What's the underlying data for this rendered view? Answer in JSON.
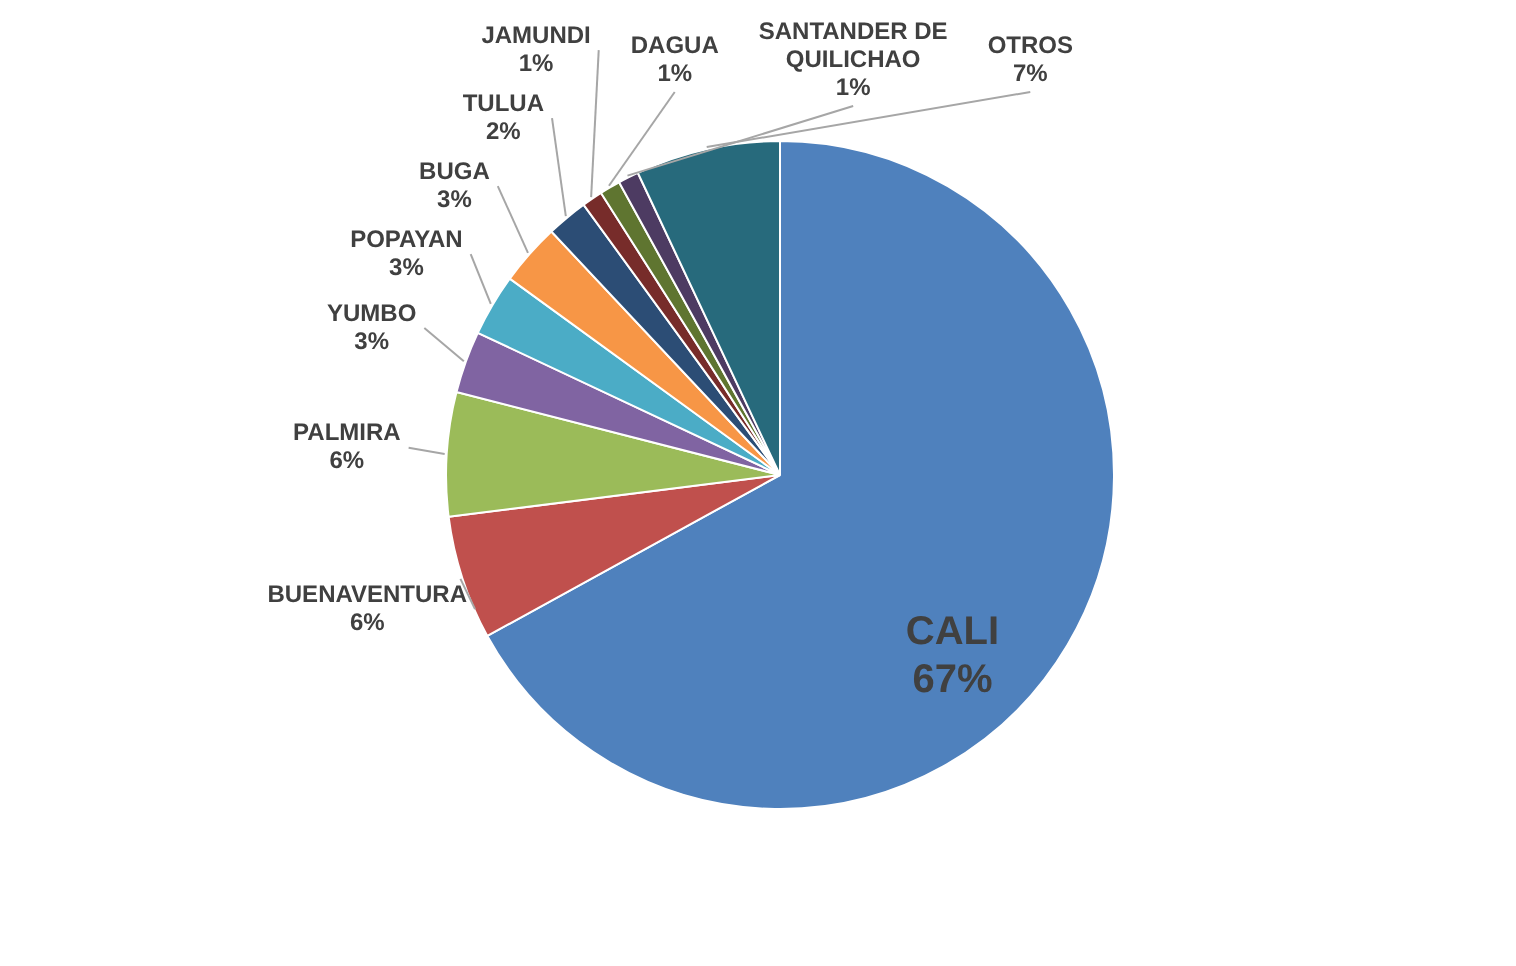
{
  "chart_data": {
    "type": "pie",
    "categories": [
      "CALI",
      "BUENAVENTURA",
      "PALMIRA",
      "YUMBO",
      "POPAYAN",
      "BUGA",
      "TULUA",
      "JAMUNDI",
      "DAGUA",
      "SANTANDER DE QUILICHAO",
      "OTROS"
    ],
    "values": [
      67,
      6,
      6,
      3,
      3,
      3,
      2,
      1,
      1,
      1,
      7
    ],
    "value_labels": [
      "67%",
      "6%",
      "6%",
      "3%",
      "3%",
      "3%",
      "2%",
      "1%",
      "1%",
      "1%",
      "7%"
    ],
    "colors": [
      "#4f81bd",
      "#c0504d",
      "#9bbb59",
      "#8064a2",
      "#4bacc6",
      "#f79646",
      "#2c4d75",
      "#772c2a",
      "#5f7530",
      "#4d3b62",
      "#276a7c"
    ],
    "legend": false
  }
}
